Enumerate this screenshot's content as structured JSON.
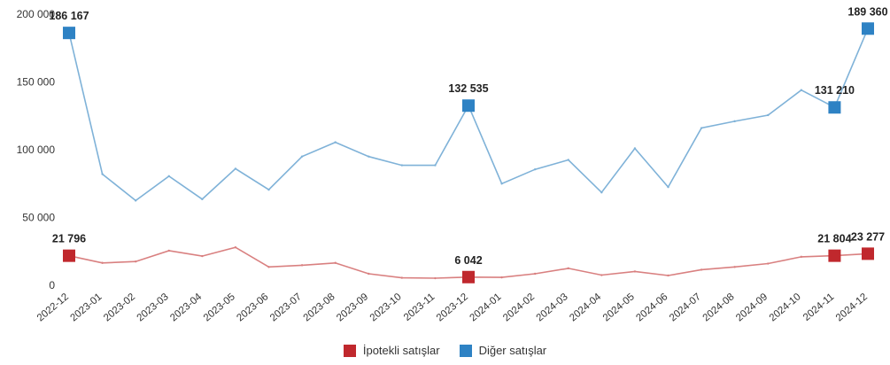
{
  "chart_data": {
    "type": "line",
    "title": "",
    "xlabel": "",
    "ylabel": "",
    "ylim": [
      0,
      200000
    ],
    "yticks": [
      {
        "value": 0,
        "label": "0"
      },
      {
        "value": 50000,
        "label": "50 000"
      },
      {
        "value": 100000,
        "label": "100 000"
      },
      {
        "value": 150000,
        "label": "150 000"
      },
      {
        "value": 200000,
        "label": "200 000"
      }
    ],
    "grid": false,
    "legend_position": "bottom-center",
    "categories": [
      "2022-12",
      "2023-01",
      "2023-02",
      "2023-03",
      "2023-04",
      "2023-05",
      "2023-06",
      "2023-07",
      "2023-08",
      "2023-09",
      "2023-10",
      "2023-11",
      "2023-12",
      "2024-01",
      "2024-02",
      "2024-03",
      "2024-04",
      "2024-05",
      "2024-06",
      "2024-07",
      "2024-08",
      "2024-09",
      "2024-10",
      "2024-11",
      "2024-12"
    ],
    "series": [
      {
        "name": "İpotekli satışlar",
        "color": "#c0282d",
        "line_color": "#d98080",
        "values": [
          21796,
          16500,
          17500,
          25500,
          21500,
          28000,
          13500,
          14800,
          16500,
          8500,
          5500,
          5200,
          6042,
          5800,
          8500,
          12500,
          7500,
          10200,
          7200,
          11500,
          13500,
          16000,
          21000,
          21804,
          23277
        ],
        "labels": [
          {
            "index": 0,
            "text": "21 796"
          },
          {
            "index": 12,
            "text": "6 042"
          },
          {
            "index": 23,
            "text": "21 804"
          },
          {
            "index": 24,
            "text": "23 277"
          }
        ]
      },
      {
        "name": "Diğer satışlar",
        "color": "#2e82c4",
        "line_color": "#7fb2d8",
        "values": [
          186167,
          82000,
          62500,
          80500,
          63500,
          86000,
          70500,
          95000,
          105500,
          95000,
          88500,
          88500,
          132535,
          75000,
          85500,
          92500,
          68500,
          101000,
          72500,
          116000,
          121000,
          125500,
          144000,
          131210,
          189360
        ],
        "labels": [
          {
            "index": 0,
            "text": "186 167"
          },
          {
            "index": 12,
            "text": "132 535"
          },
          {
            "index": 23,
            "text": "131 210"
          },
          {
            "index": 24,
            "text": "189 360"
          }
        ]
      }
    ]
  }
}
